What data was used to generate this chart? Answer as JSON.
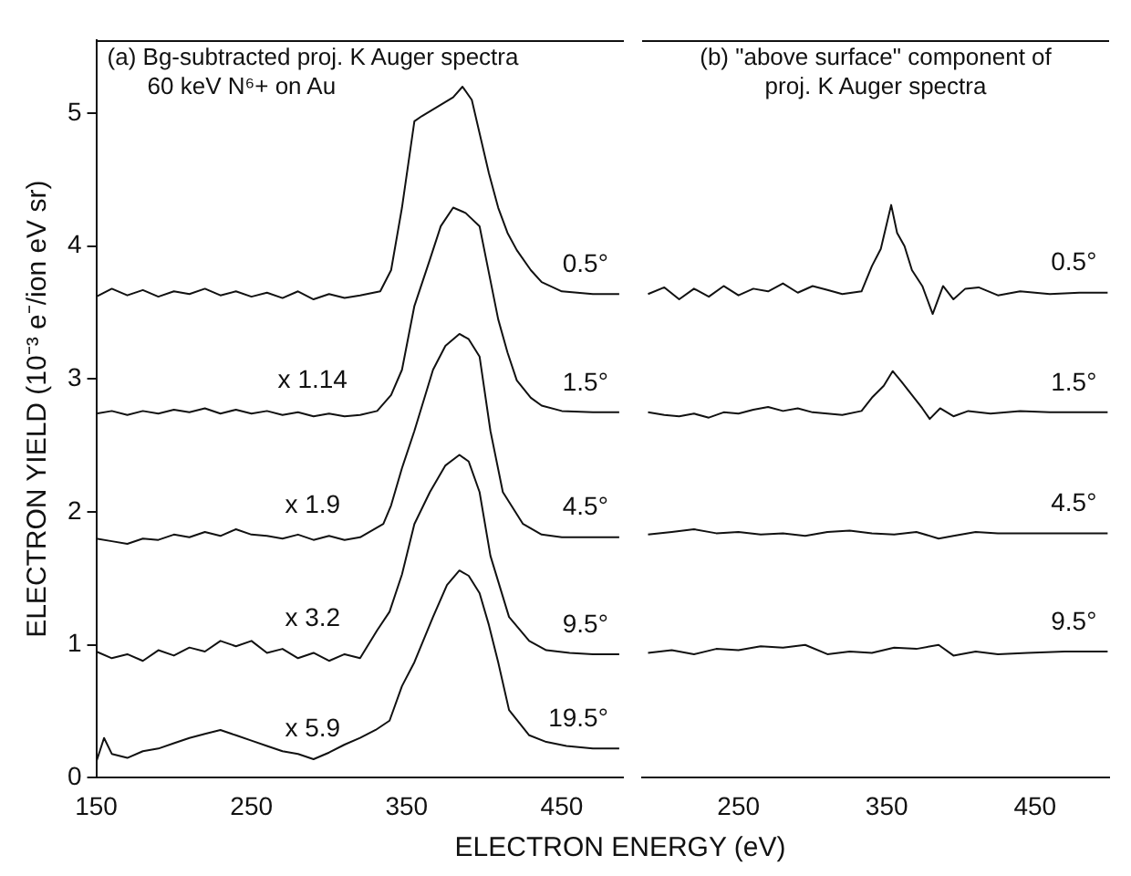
{
  "chart_data": [
    {
      "type": "line",
      "title": "(a) Bg-subtracted proj. K Auger spectra",
      "subtitle": "60 keV N⁶+ on Au",
      "xlabel": "ELECTRON ENERGY (eV)",
      "ylabel": "ELECTRON YIELD (10⁻³ e⁻/ion eV sr)",
      "xlim": [
        150,
        490
      ],
      "xticks": [
        150,
        250,
        350,
        450
      ],
      "ylim": [
        0,
        5.55
      ],
      "yticks": [
        0,
        1,
        2,
        3,
        4,
        5
      ],
      "grid": false,
      "legend": false,
      "marker": "none",
      "annotations": [
        "x 1.14",
        "x 1.9",
        "x 3.2",
        "x 5.9"
      ],
      "series": [
        {
          "name": "0.5°",
          "color": "#111111",
          "x": [
            150,
            160,
            170,
            180,
            190,
            200,
            210,
            220,
            230,
            240,
            250,
            260,
            270,
            280,
            290,
            300,
            310,
            320,
            333,
            340,
            347,
            355,
            360,
            370,
            380,
            386,
            392,
            397,
            403,
            409,
            415,
            421,
            430,
            437,
            450,
            470,
            487
          ],
          "values": [
            3.62,
            3.68,
            3.63,
            3.67,
            3.62,
            3.66,
            3.64,
            3.68,
            3.63,
            3.66,
            3.62,
            3.65,
            3.61,
            3.66,
            3.6,
            3.64,
            3.61,
            3.63,
            3.66,
            3.82,
            4.29,
            4.94,
            4.98,
            5.05,
            5.12,
            5.2,
            5.1,
            4.85,
            4.55,
            4.29,
            4.1,
            3.97,
            3.82,
            3.73,
            3.66,
            3.64,
            3.64
          ]
        },
        {
          "name": "1.5°",
          "color": "#111111",
          "x": [
            150,
            160,
            170,
            180,
            190,
            200,
            210,
            220,
            230,
            240,
            250,
            260,
            270,
            280,
            290,
            300,
            310,
            320,
            331,
            340,
            347,
            355,
            365,
            372,
            380,
            388,
            397,
            403,
            409,
            415,
            421,
            430,
            437,
            450,
            470,
            487
          ],
          "values": [
            2.74,
            2.76,
            2.73,
            2.76,
            2.74,
            2.77,
            2.75,
            2.78,
            2.74,
            2.77,
            2.74,
            2.76,
            2.73,
            2.75,
            2.72,
            2.74,
            2.72,
            2.73,
            2.76,
            2.88,
            3.07,
            3.55,
            3.9,
            4.15,
            4.29,
            4.25,
            4.15,
            3.8,
            3.45,
            3.2,
            2.99,
            2.86,
            2.8,
            2.76,
            2.75,
            2.75
          ]
        },
        {
          "name": "4.5°",
          "color": "#111111",
          "x": [
            150,
            160,
            170,
            180,
            190,
            200,
            210,
            220,
            230,
            240,
            250,
            260,
            270,
            280,
            290,
            300,
            310,
            320,
            335,
            340,
            347,
            355,
            367,
            375,
            384,
            390,
            397,
            404,
            412,
            425,
            437,
            450,
            470,
            487
          ],
          "values": [
            1.8,
            1.78,
            1.76,
            1.8,
            1.79,
            1.83,
            1.81,
            1.85,
            1.82,
            1.87,
            1.83,
            1.82,
            1.8,
            1.83,
            1.79,
            1.82,
            1.79,
            1.81,
            1.91,
            2.05,
            2.33,
            2.61,
            3.07,
            3.25,
            3.34,
            3.3,
            3.17,
            2.61,
            2.15,
            1.91,
            1.83,
            1.81,
            1.81,
            1.81
          ]
        },
        {
          "name": "9.5°",
          "color": "#111111",
          "x": [
            150,
            160,
            170,
            180,
            190,
            200,
            210,
            220,
            230,
            240,
            250,
            260,
            270,
            280,
            290,
            300,
            310,
            320,
            331,
            339,
            347,
            355,
            365,
            375,
            384,
            390,
            397,
            404,
            416,
            429,
            440,
            455,
            470,
            487
          ],
          "values": [
            0.95,
            0.9,
            0.93,
            0.88,
            0.96,
            0.92,
            0.98,
            0.95,
            1.03,
            0.99,
            1.03,
            0.94,
            0.97,
            0.9,
            0.94,
            0.88,
            0.93,
            0.9,
            1.11,
            1.25,
            1.53,
            1.91,
            2.15,
            2.35,
            2.43,
            2.38,
            2.15,
            1.67,
            1.21,
            1.03,
            0.96,
            0.94,
            0.93,
            0.93
          ]
        },
        {
          "name": "19.5°",
          "color": "#111111",
          "x": [
            150,
            155,
            160,
            170,
            180,
            190,
            200,
            210,
            220,
            230,
            240,
            250,
            260,
            270,
            280,
            290,
            300,
            310,
            320,
            330,
            339,
            347,
            355,
            367,
            376,
            384,
            390,
            397,
            403,
            409,
            416,
            429,
            440,
            453,
            470,
            487
          ],
          "values": [
            0.12,
            0.3,
            0.18,
            0.15,
            0.2,
            0.22,
            0.26,
            0.3,
            0.33,
            0.36,
            0.32,
            0.28,
            0.24,
            0.2,
            0.18,
            0.14,
            0.19,
            0.25,
            0.3,
            0.36,
            0.43,
            0.69,
            0.87,
            1.21,
            1.45,
            1.56,
            1.52,
            1.39,
            1.15,
            0.87,
            0.51,
            0.32,
            0.27,
            0.24,
            0.22,
            0.22
          ]
        }
      ]
    },
    {
      "type": "line",
      "title": "(b) \"above surface\" component of",
      "subtitle": "proj. K Auger spectra",
      "xlim": [
        185,
        500
      ],
      "xticks": [
        250,
        350,
        450
      ],
      "ylim": [
        0,
        5.55
      ],
      "yticks": [
        0,
        1,
        2,
        3,
        4,
        5
      ],
      "tick_labels": "x",
      "grid": false,
      "legend": false,
      "marker": "none",
      "series": [
        {
          "name": "0.5°",
          "color": "#111111",
          "x": [
            189,
            200,
            210,
            220,
            230,
            240,
            250,
            260,
            270,
            280,
            290,
            300,
            310,
            320,
            333,
            340,
            346,
            353,
            357,
            362,
            367,
            374,
            381,
            388,
            395,
            403,
            412,
            425,
            440,
            460,
            480,
            499
          ],
          "values": [
            3.64,
            3.69,
            3.6,
            3.68,
            3.62,
            3.7,
            3.63,
            3.68,
            3.66,
            3.72,
            3.65,
            3.7,
            3.67,
            3.64,
            3.66,
            3.85,
            3.98,
            4.31,
            4.1,
            4.0,
            3.82,
            3.7,
            3.49,
            3.7,
            3.6,
            3.68,
            3.69,
            3.63,
            3.66,
            3.64,
            3.65,
            3.65
          ]
        },
        {
          "name": "1.5°",
          "color": "#111111",
          "x": [
            189,
            200,
            210,
            220,
            230,
            240,
            250,
            260,
            270,
            280,
            290,
            300,
            310,
            320,
            333,
            340,
            348,
            354,
            360,
            367,
            374,
            379,
            386,
            395,
            405,
            420,
            440,
            460,
            480,
            499
          ],
          "values": [
            2.75,
            2.73,
            2.72,
            2.74,
            2.71,
            2.75,
            2.74,
            2.77,
            2.79,
            2.76,
            2.78,
            2.75,
            2.74,
            2.73,
            2.76,
            2.86,
            2.95,
            3.06,
            2.98,
            2.88,
            2.78,
            2.7,
            2.78,
            2.72,
            2.76,
            2.74,
            2.76,
            2.75,
            2.75,
            2.75
          ]
        },
        {
          "name": "4.5°",
          "color": "#111111",
          "x": [
            189,
            205,
            220,
            235,
            250,
            265,
            280,
            295,
            310,
            325,
            340,
            355,
            370,
            385,
            395,
            410,
            425,
            445,
            470,
            499
          ],
          "values": [
            1.83,
            1.85,
            1.87,
            1.84,
            1.85,
            1.83,
            1.84,
            1.82,
            1.85,
            1.86,
            1.84,
            1.83,
            1.85,
            1.8,
            1.82,
            1.85,
            1.84,
            1.84,
            1.84,
            1.84
          ]
        },
        {
          "name": "9.5°",
          "color": "#111111",
          "x": [
            189,
            205,
            220,
            235,
            250,
            265,
            280,
            295,
            310,
            325,
            340,
            355,
            370,
            385,
            395,
            410,
            425,
            445,
            470,
            499
          ],
          "values": [
            0.94,
            0.96,
            0.93,
            0.97,
            0.96,
            0.99,
            0.98,
            1.0,
            0.93,
            0.95,
            0.94,
            0.98,
            0.97,
            1.0,
            0.92,
            0.95,
            0.93,
            0.94,
            0.95,
            0.95
          ]
        }
      ]
    }
  ]
}
